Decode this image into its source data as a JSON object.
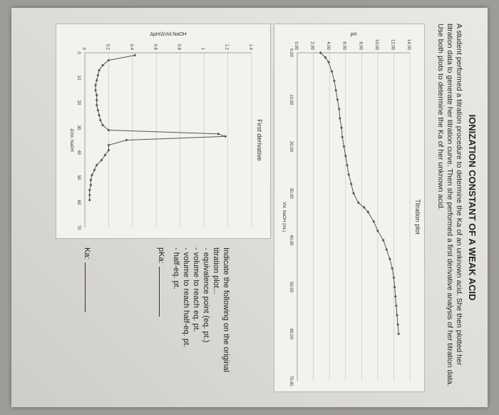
{
  "worksheet": {
    "title": "IONIZATION CONSTANT OF A WEAK ACID",
    "intro": "A student performed a titration procedure to determine the Ka of an unknown acid. She then plotted her titration data to generate her titration curve. Then she performed a first derivative analysis of her titration data. Use both plots to determine the Ka of her unknown acid.",
    "instructions": {
      "heading": "Indicate the following on the original titration plot...",
      "items": [
        "- equivalence point (eq. pt.)",
        "- volume to reach eq. pt.",
        "- volume to reach half-eq. pt.",
        "- half-eq. pt."
      ]
    },
    "pka_label": "pKa:",
    "ka_label": "Ka:"
  },
  "chart_data": [
    {
      "type": "line",
      "title": "Titration plot",
      "xlabel": "Vol. NaOH (mL)",
      "ylabel": "pH",
      "xlim": [
        0,
        70
      ],
      "ylim": [
        0,
        14
      ],
      "x_ticks": [
        "0.00",
        "10.00",
        "20.00",
        "30.00",
        "40.00",
        "50.00",
        "60.00",
        "70.00"
      ],
      "y_ticks": [
        "0.00",
        "2.00",
        "4.00",
        "6.00",
        "8.00",
        "10.00",
        "12.00",
        "14.00"
      ],
      "grid": "horizontal",
      "marker_color": "#555555",
      "x": [
        0,
        1,
        2,
        4,
        6,
        8,
        10,
        12,
        14,
        16,
        18,
        20,
        22,
        24,
        26,
        28,
        30,
        32,
        33,
        34,
        36,
        38,
        40,
        42,
        44,
        46,
        48,
        50,
        52,
        54,
        56,
        58,
        60
      ],
      "y": [
        2.9,
        3.5,
        3.9,
        4.3,
        4.6,
        4.8,
        5.0,
        5.2,
        5.3,
        5.5,
        5.6,
        5.8,
        6.0,
        6.2,
        6.4,
        6.7,
        7.0,
        7.6,
        8.3,
        8.8,
        9.5,
        10.0,
        10.7,
        11.1,
        11.5,
        11.8,
        12.0,
        12.1,
        12.2,
        12.3,
        12.4,
        12.5,
        12.6
      ]
    },
    {
      "type": "line",
      "title": "First derivative",
      "xlabel": "ΔVol. NaOH",
      "ylabel": "ΔpH/ΔVol.NaOH",
      "xlim": [
        0,
        70
      ],
      "ylim": [
        0,
        1.4
      ],
      "x_ticks": [
        "0",
        "10",
        "20",
        "30",
        "40",
        "50",
        "60",
        "70"
      ],
      "y_ticks": [
        "0",
        "0.2",
        "0.4",
        "0.6",
        "0.8",
        "1",
        "1.2",
        "1.4"
      ],
      "grid": "horizontal",
      "marker_color": "#555555",
      "x": [
        1,
        3,
        5,
        7,
        9,
        11,
        13,
        15,
        17,
        19,
        21,
        23,
        25,
        27,
        29,
        31,
        32.5,
        33.5,
        35,
        37,
        39,
        41,
        43,
        45,
        47,
        49,
        51,
        53,
        55,
        57,
        59
      ],
      "y": [
        0.42,
        0.2,
        0.15,
        0.12,
        0.11,
        0.1,
        0.09,
        0.09,
        0.1,
        0.1,
        0.1,
        0.11,
        0.12,
        0.13,
        0.15,
        0.2,
        1.12,
        1.18,
        0.35,
        0.2,
        0.2,
        0.17,
        0.14,
        0.1,
        0.08,
        0.06,
        0.05,
        0.05,
        0.04,
        0.04,
        0.04
      ]
    }
  ]
}
